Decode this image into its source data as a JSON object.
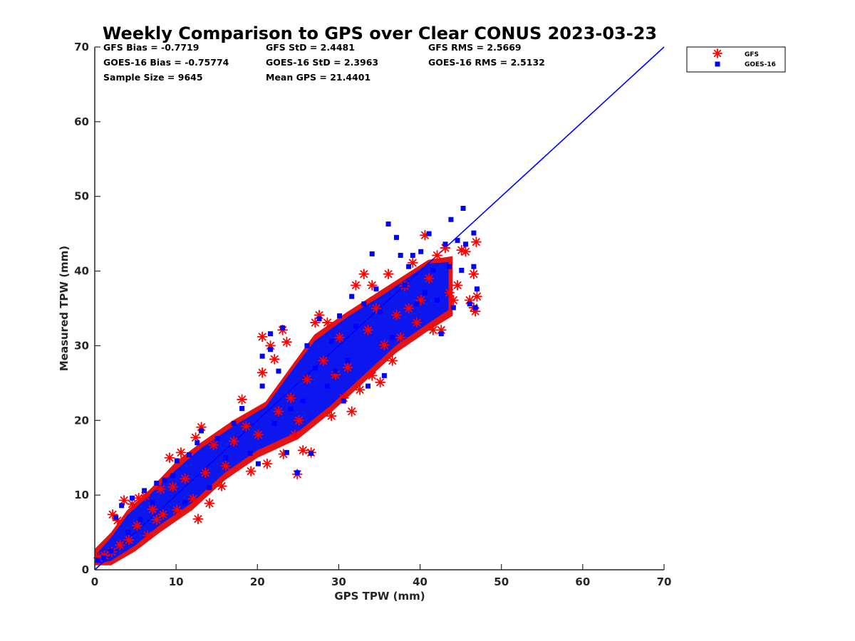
{
  "chart_data": {
    "type": "scatter",
    "title": "Weekly Comparison to GPS over Clear CONUS 2023-03-23",
    "xlabel": "GPS TPW (mm)",
    "ylabel": "Measured TPW (mm)",
    "xlim": [
      0,
      70
    ],
    "ylim": [
      0,
      70
    ],
    "xticks": [
      "0",
      "10",
      "20",
      "30",
      "40",
      "50",
      "60",
      "70"
    ],
    "yticks": [
      "0",
      "10",
      "20",
      "30",
      "40",
      "50",
      "60",
      "70"
    ],
    "grid": false,
    "legend_position": "outside-top-right",
    "stats": {
      "gfs_bias": "GFS Bias = -0.7719",
      "gfs_std": "GFS StD = 2.4481",
      "gfs_rms": "GFS RMS = 2.5669",
      "goes_bias": "GOES-16 Bias = -0.75774",
      "goes_std": "GOES-16 StD = 2.3963",
      "goes_rms": "GOES-16 RMS = 2.5132",
      "sample_size": "Sample Size = 9645",
      "mean_gps": "Mean GPS = 21.4401"
    },
    "reference_line": {
      "x": [
        0,
        70
      ],
      "y": [
        0,
        70
      ],
      "color": "#0000ff"
    },
    "series": [
      {
        "name": "GFS",
        "marker": "asterisk",
        "color": "#ff0000",
        "points": [
          [
            0.5,
            1.6
          ],
          [
            1.2,
            1.9
          ],
          [
            2.1,
            2.4
          ],
          [
            2.2,
            7.4
          ],
          [
            2.8,
            6.6
          ],
          [
            3.6,
            9.3
          ],
          [
            3.1,
            3.3
          ],
          [
            4.2,
            4.0
          ],
          [
            4.6,
            8.8
          ],
          [
            5.2,
            5.9
          ],
          [
            5.4,
            9.6
          ],
          [
            6.2,
            9.9
          ],
          [
            6.5,
            4.6
          ],
          [
            7.1,
            8.1
          ],
          [
            7.6,
            6.7
          ],
          [
            8.1,
            10.8
          ],
          [
            8.4,
            7.4
          ],
          [
            9.2,
            15.0
          ],
          [
            9.6,
            11.1
          ],
          [
            10.1,
            8.0
          ],
          [
            10.6,
            15.7
          ],
          [
            11.1,
            12.2
          ],
          [
            12.1,
            9.5
          ],
          [
            12.4,
            17.7
          ],
          [
            12.7,
            6.8
          ],
          [
            13.1,
            19.1
          ],
          [
            13.6,
            13.0
          ],
          [
            14.1,
            8.9
          ],
          [
            14.6,
            16.7
          ],
          [
            15.6,
            11.2
          ],
          [
            16.1,
            13.9
          ],
          [
            17.1,
            17.2
          ],
          [
            18.1,
            22.8
          ],
          [
            18.6,
            19.2
          ],
          [
            19.2,
            13.2
          ],
          [
            20.1,
            18.1
          ],
          [
            20.6,
            26.4
          ],
          [
            20.6,
            31.2
          ],
          [
            21.2,
            14.2
          ],
          [
            21.6,
            30.0
          ],
          [
            22.1,
            28.2
          ],
          [
            22.6,
            21.2
          ],
          [
            23.1,
            32.1
          ],
          [
            23.2,
            15.5
          ],
          [
            23.6,
            30.5
          ],
          [
            24.1,
            23.0
          ],
          [
            24.6,
            18.1
          ],
          [
            24.9,
            12.8
          ],
          [
            25.1,
            20.0
          ],
          [
            25.6,
            16.0
          ],
          [
            26.1,
            25.5
          ],
          [
            26.6,
            15.7
          ],
          [
            27.1,
            33.1
          ],
          [
            27.6,
            34.1
          ],
          [
            28.1,
            28.0
          ],
          [
            28.6,
            33.1
          ],
          [
            29.1,
            20.6
          ],
          [
            29.6,
            26.1
          ],
          [
            30.1,
            31.1
          ],
          [
            30.6,
            23.0
          ],
          [
            31.1,
            27.1
          ],
          [
            31.6,
            21.2
          ],
          [
            32.1,
            38.1
          ],
          [
            32.6,
            24.1
          ],
          [
            33.1,
            39.6
          ],
          [
            33.6,
            32.1
          ],
          [
            34.1,
            26.0
          ],
          [
            34.1,
            38.1
          ],
          [
            34.6,
            35.0
          ],
          [
            35.1,
            25.1
          ],
          [
            35.6,
            30.1
          ],
          [
            36.1,
            39.6
          ],
          [
            36.6,
            28.0
          ],
          [
            37.1,
            34.1
          ],
          [
            37.6,
            31.1
          ],
          [
            38.1,
            38.0
          ],
          [
            38.6,
            35.0
          ],
          [
            39.1,
            41.1
          ],
          [
            39.6,
            33.1
          ],
          [
            40.1,
            36.1
          ],
          [
            40.6,
            44.8
          ],
          [
            41.1,
            39.0
          ],
          [
            41.6,
            32.1
          ],
          [
            42.1,
            42.1
          ],
          [
            42.6,
            32.1
          ],
          [
            43.1,
            43.1
          ],
          [
            43.6,
            37.1
          ],
          [
            44.1,
            36.1
          ],
          [
            44.6,
            38.1
          ],
          [
            45.1,
            42.8
          ],
          [
            45.6,
            42.6
          ],
          [
            46.1,
            36.1
          ],
          [
            46.6,
            39.6
          ],
          [
            46.6,
            35.1
          ],
          [
            46.9,
            43.9
          ],
          [
            47.0,
            36.6
          ],
          [
            46.8,
            34.6
          ]
        ]
      },
      {
        "name": "GOES-16",
        "marker": "square",
        "color": "#0000ff",
        "points": [
          [
            0.4,
            1.3
          ],
          [
            1.1,
            1.6
          ],
          [
            2.0,
            2.5
          ],
          [
            2.6,
            7.0
          ],
          [
            3.3,
            8.6
          ],
          [
            4.1,
            5.0
          ],
          [
            4.6,
            9.6
          ],
          [
            5.6,
            6.7
          ],
          [
            6.1,
            10.6
          ],
          [
            7.1,
            9.0
          ],
          [
            7.6,
            11.6
          ],
          [
            8.6,
            12.0
          ],
          [
            9.6,
            12.6
          ],
          [
            10.1,
            14.6
          ],
          [
            11.1,
            9.0
          ],
          [
            11.6,
            15.4
          ],
          [
            12.6,
            17.0
          ],
          [
            13.1,
            18.6
          ],
          [
            14.1,
            11.0
          ],
          [
            15.1,
            17.6
          ],
          [
            16.1,
            15.0
          ],
          [
            17.1,
            19.6
          ],
          [
            18.1,
            21.6
          ],
          [
            19.1,
            15.6
          ],
          [
            20.1,
            14.2
          ],
          [
            20.6,
            28.6
          ],
          [
            20.6,
            24.6
          ],
          [
            21.6,
            31.6
          ],
          [
            21.6,
            29.5
          ],
          [
            22.1,
            19.6
          ],
          [
            22.6,
            26.6
          ],
          [
            23.1,
            32.4
          ],
          [
            23.6,
            15.7
          ],
          [
            24.1,
            21.6
          ],
          [
            24.9,
            13.0
          ],
          [
            25.6,
            22.6
          ],
          [
            26.1,
            30.0
          ],
          [
            26.6,
            15.6
          ],
          [
            27.1,
            27.0
          ],
          [
            27.6,
            33.6
          ],
          [
            28.6,
            24.6
          ],
          [
            29.1,
            30.6
          ],
          [
            29.6,
            26.6
          ],
          [
            30.1,
            34.0
          ],
          [
            30.6,
            22.6
          ],
          [
            31.1,
            28.0
          ],
          [
            31.6,
            36.6
          ],
          [
            32.1,
            32.6
          ],
          [
            33.1,
            35.6
          ],
          [
            33.6,
            24.6
          ],
          [
            34.1,
            42.3
          ],
          [
            34.6,
            37.6
          ],
          [
            35.1,
            34.6
          ],
          [
            35.6,
            26.0
          ],
          [
            36.1,
            46.3
          ],
          [
            36.6,
            31.1
          ],
          [
            37.1,
            44.5
          ],
          [
            37.6,
            42.1
          ],
          [
            38.1,
            38.1
          ],
          [
            38.6,
            40.6
          ],
          [
            39.1,
            42.1
          ],
          [
            39.6,
            35.6
          ],
          [
            40.1,
            42.6
          ],
          [
            40.6,
            37.1
          ],
          [
            41.1,
            45.0
          ],
          [
            41.6,
            40.1
          ],
          [
            42.1,
            36.1
          ],
          [
            42.6,
            31.6
          ],
          [
            43.1,
            43.6
          ],
          [
            43.6,
            40.6
          ],
          [
            43.8,
            46.9
          ],
          [
            44.1,
            35.1
          ],
          [
            44.6,
            44.1
          ],
          [
            45.1,
            40.1
          ],
          [
            45.3,
            48.4
          ],
          [
            45.6,
            43.6
          ],
          [
            46.1,
            35.6
          ],
          [
            46.6,
            40.6
          ],
          [
            46.6,
            45.1
          ],
          [
            47.0,
            37.6
          ],
          [
            46.8,
            35.1
          ]
        ]
      }
    ]
  }
}
